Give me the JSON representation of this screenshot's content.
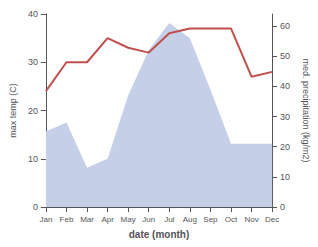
{
  "chart_data": {
    "type": "line",
    "xlabel": "date (month)",
    "ylabel": "max temp (C)",
    "y2label": "med. precipitation (kg/m2)",
    "categories": [
      "Jan",
      "Feb",
      "Mar",
      "Apr",
      "May",
      "Jun",
      "Jul",
      "Aug",
      "Sep",
      "Oct",
      "Nov",
      "Dec"
    ],
    "series": [
      {
        "type": "area",
        "axis": "y2",
        "color": "#c5cfe8",
        "values": [
          25,
          28,
          13,
          16,
          37,
          52,
          61,
          56,
          39,
          21,
          21,
          21
        ]
      },
      {
        "type": "line",
        "color": "#c0504d",
        "values": [
          24,
          30,
          30,
          35,
          33,
          32,
          36,
          37,
          37,
          37,
          27,
          28
        ]
      }
    ],
    "ylim": [
      0,
      40
    ],
    "yticks": [
      0,
      10,
      20,
      30,
      40
    ],
    "y2lim": [
      0,
      64
    ],
    "y2ticks": [
      0,
      10,
      20,
      30,
      40,
      50,
      60
    ],
    "grid": false
  }
}
